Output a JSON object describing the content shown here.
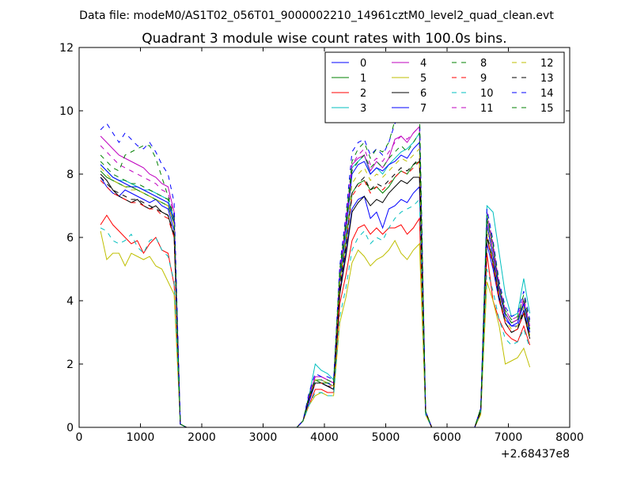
{
  "figure": {
    "suptitle": "Data file: modeM0/AS1T02_056T01_9000002210_14961cztM0_level2_quad_clean.evt"
  },
  "chart_data": {
    "type": "line",
    "title": "Quadrant 3 module wise count rates with 100.0s bins.",
    "xlabel": "",
    "ylabel": "",
    "x_offset_label": "+2.68437e8",
    "xlim": [
      0,
      8000
    ],
    "ylim": [
      0,
      12
    ],
    "xticks": [
      0,
      1000,
      2000,
      3000,
      4000,
      5000,
      6000,
      7000,
      8000
    ],
    "xtick_labels": [
      "0",
      "1000",
      "2000",
      "3000",
      "4000",
      "5000",
      "6000",
      "7000",
      "8000"
    ],
    "yticks": [
      0,
      2,
      4,
      6,
      8,
      10,
      12
    ],
    "ytick_labels": [
      "0",
      "2",
      "4",
      "6",
      "8",
      "10",
      "12"
    ],
    "grid": false,
    "legend_position": "top-right",
    "legend_columns": 4,
    "x": [
      350,
      450,
      550,
      650,
      750,
      850,
      950,
      1050,
      1150,
      1250,
      1350,
      1450,
      1550,
      1650,
      1750,
      1850,
      1950,
      2050,
      2150,
      2250,
      2350,
      2450,
      2550,
      2650,
      2750,
      2850,
      2950,
      3050,
      3150,
      3250,
      3350,
      3450,
      3550,
      3650,
      3750,
      3850,
      3950,
      4050,
      4150,
      4250,
      4350,
      4450,
      4550,
      4650,
      4750,
      4850,
      4950,
      5050,
      5150,
      5250,
      5350,
      5450,
      5550,
      5650,
      5750,
      5850,
      5950,
      6050,
      6150,
      6250,
      6350,
      6450,
      6550,
      6650,
      6750,
      6850,
      6950,
      7050,
      7150,
      7250,
      7350
    ],
    "series": [
      {
        "name": "0",
        "color": "#0000ff",
        "dash": "solid",
        "values": [
          7.9,
          7.6,
          7.4,
          7.3,
          7.5,
          7.4,
          7.3,
          7.2,
          7.1,
          7.2,
          7.0,
          6.9,
          6.2,
          0.1,
          0,
          0,
          0,
          0,
          0,
          0,
          0,
          0,
          0,
          0,
          0,
          0,
          0,
          0,
          0,
          0,
          0,
          0,
          0,
          0.2,
          0.8,
          1.4,
          1.4,
          1.3,
          1.2,
          4.3,
          5.5,
          6.9,
          7.2,
          7.3,
          6.6,
          6.8,
          6.3,
          6.9,
          7.0,
          7.2,
          7.1,
          7.4,
          7.6,
          0.5,
          0,
          0,
          0,
          0,
          0,
          0,
          0,
          0,
          0.5,
          5.8,
          5.0,
          4.0,
          3.4,
          3.2,
          3.2,
          3.7,
          2.9
        ]
      },
      {
        "name": "1",
        "color": "#008000",
        "dash": "solid",
        "values": [
          8.1,
          7.9,
          7.8,
          7.7,
          7.6,
          7.6,
          7.5,
          7.4,
          7.3,
          7.2,
          7.1,
          7.0,
          6.4,
          0.1,
          0,
          0,
          0,
          0,
          0,
          0,
          0,
          0,
          0,
          0,
          0,
          0,
          0,
          0,
          0,
          0,
          0,
          0,
          0,
          0.2,
          0.9,
          1.5,
          1.4,
          1.4,
          1.3,
          4.6,
          5.8,
          7.4,
          7.7,
          7.8,
          7.5,
          7.6,
          7.4,
          7.6,
          7.9,
          8.1,
          8.0,
          8.3,
          8.4,
          0.5,
          0,
          0,
          0,
          0,
          0,
          0,
          0,
          0,
          0.6,
          6.4,
          5.4,
          4.3,
          3.6,
          3.3,
          3.4,
          3.9,
          3.1
        ]
      },
      {
        "name": "2",
        "color": "#ff0000",
        "dash": "solid",
        "values": [
          6.4,
          6.7,
          6.4,
          6.2,
          6.0,
          5.8,
          5.9,
          5.5,
          5.8,
          6.0,
          5.6,
          5.5,
          4.5,
          0.1,
          0,
          0,
          0,
          0,
          0,
          0,
          0,
          0,
          0,
          0,
          0,
          0,
          0,
          0,
          0,
          0,
          0,
          0,
          0,
          0.2,
          0.7,
          1.2,
          1.2,
          1.1,
          1.1,
          3.9,
          4.8,
          5.9,
          6.3,
          6.4,
          6.1,
          6.3,
          6.1,
          6.3,
          6.3,
          6.4,
          6.1,
          6.3,
          6.6,
          0.4,
          0,
          0,
          0,
          0,
          0,
          0,
          0,
          0,
          0.5,
          5.5,
          4.0,
          3.4,
          3.0,
          2.8,
          2.7,
          3.2,
          2.6
        ]
      },
      {
        "name": "3",
        "color": "#00bfbf",
        "dash": "solid",
        "values": [
          8.3,
          8.1,
          7.9,
          7.8,
          7.8,
          7.7,
          7.6,
          7.5,
          7.5,
          7.4,
          7.3,
          7.2,
          6.6,
          0.1,
          0,
          0,
          0,
          0,
          0,
          0,
          0,
          0,
          0,
          0,
          0,
          0,
          0,
          0,
          0,
          0,
          0,
          0,
          0,
          0.2,
          1.0,
          2.0,
          1.8,
          1.7,
          1.5,
          4.8,
          6.3,
          8.2,
          8.4,
          8.6,
          8.0,
          8.2,
          8.0,
          8.3,
          8.5,
          8.7,
          8.8,
          9.0,
          9.3,
          0.5,
          0,
          0,
          0,
          0,
          0,
          0,
          0,
          0,
          0.6,
          7.0,
          6.8,
          5.5,
          4.2,
          3.5,
          3.6,
          4.7,
          3.6
        ]
      },
      {
        "name": "4",
        "color": "#bf00bf",
        "dash": "solid",
        "values": [
          9.2,
          9.0,
          8.8,
          8.6,
          8.5,
          8.4,
          8.3,
          8.2,
          8.0,
          7.9,
          7.7,
          7.6,
          6.8,
          0.1,
          0,
          0,
          0,
          0,
          0,
          0,
          0,
          0,
          0,
          0,
          0,
          0,
          0,
          0,
          0,
          0,
          0,
          0,
          0,
          0.2,
          1.0,
          1.6,
          1.6,
          1.5,
          1.4,
          4.9,
          6.5,
          8.3,
          8.5,
          8.6,
          8.1,
          8.4,
          8.2,
          8.5,
          9.1,
          9.2,
          9.0,
          9.3,
          9.5,
          0.5,
          0,
          0,
          0,
          0,
          0,
          0,
          0,
          0,
          0.6,
          6.6,
          5.6,
          4.4,
          3.6,
          3.3,
          3.4,
          4.0,
          3.2
        ]
      },
      {
        "name": "5",
        "color": "#bfbf00",
        "dash": "solid",
        "values": [
          6.2,
          5.3,
          5.5,
          5.5,
          5.1,
          5.5,
          5.4,
          5.3,
          5.4,
          5.1,
          5.0,
          4.6,
          4.2,
          0.1,
          0,
          0,
          0,
          0,
          0,
          0,
          0,
          0,
          0,
          0,
          0,
          0,
          0,
          0,
          0,
          0,
          0,
          0,
          0,
          0.2,
          0.7,
          1.0,
          1.1,
          1.0,
          1.0,
          3.3,
          4.1,
          5.2,
          5.6,
          5.4,
          5.1,
          5.3,
          5.4,
          5.6,
          5.9,
          5.5,
          5.3,
          5.6,
          5.8,
          0.4,
          0,
          0,
          0,
          0,
          0,
          0,
          0,
          0,
          0.4,
          4.6,
          4.0,
          3.2,
          2.0,
          2.1,
          2.2,
          2.5,
          1.9
        ]
      },
      {
        "name": "6",
        "color": "#000000",
        "dash": "solid",
        "values": [
          8.0,
          7.8,
          7.5,
          7.3,
          7.2,
          7.1,
          7.2,
          7.0,
          6.9,
          7.0,
          6.8,
          6.7,
          6.0,
          0.1,
          0,
          0,
          0,
          0,
          0,
          0,
          0,
          0,
          0,
          0,
          0,
          0,
          0,
          0,
          0,
          0,
          0,
          0,
          0,
          0.2,
          0.9,
          1.4,
          1.4,
          1.3,
          1.2,
          4.2,
          5.4,
          6.8,
          7.1,
          7.3,
          7.0,
          7.2,
          7.1,
          7.4,
          7.6,
          7.8,
          7.7,
          7.9,
          7.9,
          0.5,
          0,
          0,
          0,
          0,
          0,
          0,
          0,
          0,
          0.5,
          6.0,
          5.2,
          4.1,
          3.3,
          3.0,
          3.1,
          3.6,
          2.8
        ]
      },
      {
        "name": "7",
        "color": "#0000ff",
        "dash": "solid",
        "values": [
          8.3,
          8.1,
          7.9,
          7.8,
          7.7,
          7.6,
          7.6,
          7.5,
          7.4,
          7.3,
          7.2,
          7.1,
          6.5,
          0.1,
          0,
          0,
          0,
          0,
          0,
          0,
          0,
          0,
          0,
          0,
          0,
          0,
          0,
          0,
          0,
          0,
          0,
          0,
          0,
          0.2,
          1.0,
          1.5,
          1.5,
          1.4,
          1.3,
          4.7,
          6.1,
          8.0,
          8.3,
          8.4,
          8.0,
          8.2,
          8.1,
          8.3,
          8.4,
          8.6,
          8.5,
          8.8,
          9.0,
          0.5,
          0,
          0,
          0,
          0,
          0,
          0,
          0,
          0,
          0.6,
          6.4,
          5.4,
          4.3,
          3.5,
          3.2,
          3.3,
          3.9,
          3.0
        ]
      },
      {
        "name": "8",
        "color": "#008000",
        "dash": "dashed",
        "values": [
          8.4,
          8.2,
          8.0,
          7.9,
          7.8,
          7.7,
          7.7,
          7.6,
          7.5,
          7.4,
          7.3,
          7.2,
          6.6,
          0.1,
          0,
          0,
          0,
          0,
          0,
          0,
          0,
          0,
          0,
          0,
          0,
          0,
          0,
          0,
          0,
          0,
          0,
          0,
          0,
          0.2,
          1.0,
          1.5,
          1.5,
          1.4,
          1.4,
          4.8,
          6.3,
          8.1,
          8.4,
          8.6,
          8.2,
          8.4,
          8.2,
          8.5,
          8.7,
          8.9,
          8.7,
          9.0,
          9.3,
          0.5,
          0,
          0,
          0,
          0,
          0,
          0,
          0,
          0,
          0.6,
          6.6,
          5.7,
          4.4,
          3.6,
          3.3,
          3.4,
          4.0,
          3.1
        ]
      },
      {
        "name": "9",
        "color": "#ff0000",
        "dash": "dashed",
        "values": [
          7.8,
          7.6,
          7.4,
          7.3,
          7.2,
          7.1,
          7.1,
          7.0,
          6.9,
          6.9,
          6.7,
          6.6,
          6.0,
          0.1,
          0,
          0,
          0,
          0,
          0,
          0,
          0,
          0,
          0,
          0,
          0,
          0,
          0,
          0,
          0,
          0,
          0,
          0,
          0,
          0.2,
          0.9,
          1.4,
          1.4,
          1.3,
          1.3,
          4.4,
          5.7,
          7.3,
          7.6,
          7.8,
          7.4,
          7.6,
          7.5,
          7.7,
          7.9,
          8.1,
          8.0,
          8.2,
          8.4,
          0.5,
          0,
          0,
          0,
          0,
          0,
          0,
          0,
          0,
          0.5,
          6.0,
          5.1,
          4.0,
          3.3,
          3.0,
          3.1,
          3.6,
          2.9
        ]
      },
      {
        "name": "10",
        "color": "#00bfbf",
        "dash": "dashed",
        "values": [
          6.3,
          6.2,
          5.9,
          5.8,
          5.9,
          6.1,
          5.7,
          5.5,
          5.9,
          6.0,
          5.6,
          5.4,
          4.6,
          0.1,
          0,
          0,
          0,
          0,
          0,
          0,
          0,
          0,
          0,
          0,
          0,
          0,
          0,
          0,
          0,
          0,
          0,
          0,
          0,
          0.2,
          0.7,
          1.1,
          1.1,
          1.0,
          1.0,
          3.5,
          4.4,
          5.6,
          6.0,
          6.2,
          5.8,
          6.0,
          5.9,
          6.3,
          6.6,
          6.8,
          6.9,
          7.0,
          7.2,
          0.4,
          0,
          0,
          0,
          0,
          0,
          0,
          0,
          0,
          0.5,
          5.0,
          4.3,
          3.4,
          2.8,
          2.6,
          2.7,
          3.1,
          2.5
        ]
      },
      {
        "name": "11",
        "color": "#bf00bf",
        "dash": "dashed",
        "values": [
          8.9,
          8.7,
          8.5,
          8.3,
          8.2,
          8.1,
          8.0,
          7.9,
          7.8,
          7.7,
          7.5,
          7.4,
          6.7,
          0.1,
          0,
          0,
          0,
          0,
          0,
          0,
          0,
          0,
          0,
          0,
          0,
          0,
          0,
          0,
          0,
          0,
          0,
          0,
          0,
          0.2,
          1.0,
          1.6,
          1.6,
          1.5,
          1.4,
          4.9,
          6.4,
          8.3,
          8.6,
          8.8,
          8.3,
          8.5,
          8.4,
          8.7,
          9.0,
          9.2,
          9.1,
          9.3,
          9.5,
          0.5,
          0,
          0,
          0,
          0,
          0,
          0,
          0,
          0,
          0.6,
          6.8,
          5.8,
          4.5,
          3.7,
          3.4,
          3.5,
          4.1,
          3.2
        ]
      },
      {
        "name": "12",
        "color": "#bfbf00",
        "dash": "dashed",
        "values": [
          8.2,
          8.0,
          7.8,
          7.7,
          7.6,
          7.5,
          7.5,
          7.4,
          7.3,
          7.2,
          7.1,
          7.0,
          6.4,
          0.1,
          0,
          0,
          0,
          0,
          0,
          0,
          0,
          0,
          0,
          0,
          0,
          0,
          0,
          0,
          0,
          0,
          0,
          0,
          0,
          0.2,
          0.9,
          1.5,
          1.5,
          1.4,
          1.3,
          4.6,
          6.0,
          7.7,
          8.0,
          8.2,
          7.8,
          8.0,
          7.9,
          8.1,
          8.3,
          8.5,
          8.4,
          8.6,
          8.8,
          0.5,
          0,
          0,
          0,
          0,
          0,
          0,
          0,
          0,
          0.6,
          6.3,
          5.3,
          4.2,
          3.4,
          3.1,
          3.2,
          3.8,
          2.9
        ]
      },
      {
        "name": "13",
        "color": "#000000",
        "dash": "dashed",
        "values": [
          7.9,
          7.7,
          7.5,
          7.4,
          7.3,
          7.2,
          7.2,
          7.1,
          7.0,
          6.9,
          6.8,
          6.7,
          6.1,
          0.1,
          0,
          0,
          0,
          0,
          0,
          0,
          0,
          0,
          0,
          0,
          0,
          0,
          0,
          0,
          0,
          0,
          0,
          0,
          0,
          0.2,
          0.9,
          1.4,
          1.4,
          1.3,
          1.3,
          4.4,
          5.7,
          7.4,
          7.7,
          7.9,
          7.5,
          7.7,
          7.6,
          7.8,
          8.0,
          8.2,
          8.1,
          8.3,
          8.5,
          0.5,
          0,
          0,
          0,
          0,
          0,
          0,
          0,
          0,
          0.5,
          6.1,
          5.2,
          4.1,
          3.3,
          3.0,
          3.1,
          3.7,
          2.8
        ]
      },
      {
        "name": "14",
        "color": "#0000ff",
        "dash": "dashed",
        "values": [
          9.4,
          9.6,
          9.3,
          9.0,
          9.3,
          9.1,
          8.9,
          8.8,
          9.0,
          8.7,
          8.3,
          8.0,
          7.1,
          0.1,
          0,
          0,
          0,
          0,
          0,
          0,
          0,
          0,
          0,
          0,
          0,
          0,
          0,
          0,
          0,
          0,
          0,
          0,
          0,
          0.2,
          1.1,
          1.7,
          1.6,
          1.6,
          1.5,
          5.1,
          6.7,
          8.7,
          9.0,
          9.1,
          8.6,
          8.8,
          8.6,
          9.0,
          9.6,
          9.8,
          9.6,
          9.9,
          10.1,
          0.5,
          0,
          0,
          0,
          0,
          0,
          0,
          0,
          0,
          0.6,
          6.9,
          5.9,
          4.6,
          3.8,
          3.5,
          3.6,
          4.3,
          3.4
        ]
      },
      {
        "name": "15",
        "color": "#008000",
        "dash": "dashed",
        "values": [
          8.6,
          8.4,
          8.2,
          8.1,
          8.6,
          8.7,
          8.8,
          8.9,
          8.9,
          8.5,
          7.9,
          7.3,
          6.6,
          0.1,
          0,
          0,
          0,
          0,
          0,
          0,
          0,
          0,
          0,
          0,
          0,
          0,
          0,
          0,
          0,
          0,
          0,
          0,
          0,
          0.2,
          1.0,
          1.5,
          1.5,
          1.5,
          1.4,
          5.0,
          6.5,
          8.4,
          8.8,
          9.0,
          8.5,
          8.8,
          8.7,
          9.0,
          9.7,
          9.9,
          9.8,
          10.0,
          10.1,
          0.5,
          0,
          0,
          0,
          0,
          0,
          0,
          0,
          0,
          0.6,
          6.7,
          5.8,
          4.5,
          3.7,
          3.4,
          3.5,
          4.2,
          3.3
        ]
      }
    ]
  }
}
